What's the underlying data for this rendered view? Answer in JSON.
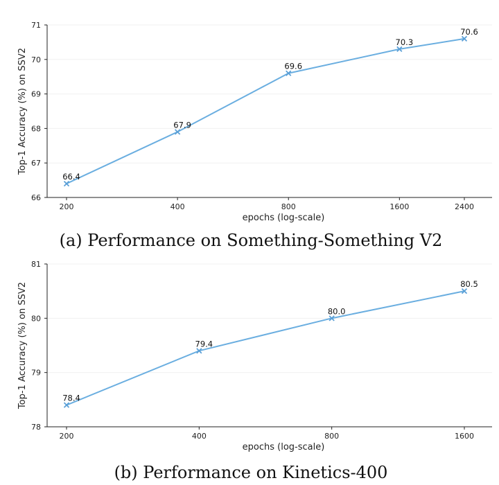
{
  "chart_data": [
    {
      "type": "line",
      "xscale": "log",
      "x": [
        200,
        400,
        800,
        1600,
        2400
      ],
      "categories": [
        "200",
        "400",
        "800",
        "1600",
        "2400"
      ],
      "values": [
        66.4,
        67.9,
        69.6,
        70.3,
        70.6
      ],
      "data_labels": [
        "66.4",
        "67.9",
        "69.6",
        "70.3",
        "70.6"
      ],
      "ylim": [
        66,
        71
      ],
      "yticks": [
        66,
        67,
        68,
        69,
        70,
        71
      ],
      "ytick_labels": [
        "66",
        "67",
        "68",
        "69",
        "70",
        "71"
      ],
      "xlabel": "epochs (log-scale)",
      "ylabel": "Top-1 Accuracy (%) on SSV2",
      "caption": "(a) Performance on Something-Something V2",
      "grid": true,
      "color": "#6aaee0"
    },
    {
      "type": "line",
      "xscale": "log",
      "x": [
        200,
        400,
        800,
        1600
      ],
      "categories": [
        "200",
        "400",
        "800",
        "1600"
      ],
      "values": [
        78.4,
        79.4,
        80.0,
        80.5
      ],
      "data_labels": [
        "78.4",
        "79.4",
        "80.0",
        "80.5"
      ],
      "ylim": [
        78,
        81
      ],
      "yticks": [
        78,
        79,
        80,
        81
      ],
      "ytick_labels": [
        "78",
        "79",
        "80",
        "81"
      ],
      "xlabel": "epochs (log-scale)",
      "ylabel": "Top-1 Accuracy (%) on SSV2",
      "caption": "(b) Performance on Kinetics-400",
      "grid": true,
      "color": "#6aaee0"
    }
  ]
}
